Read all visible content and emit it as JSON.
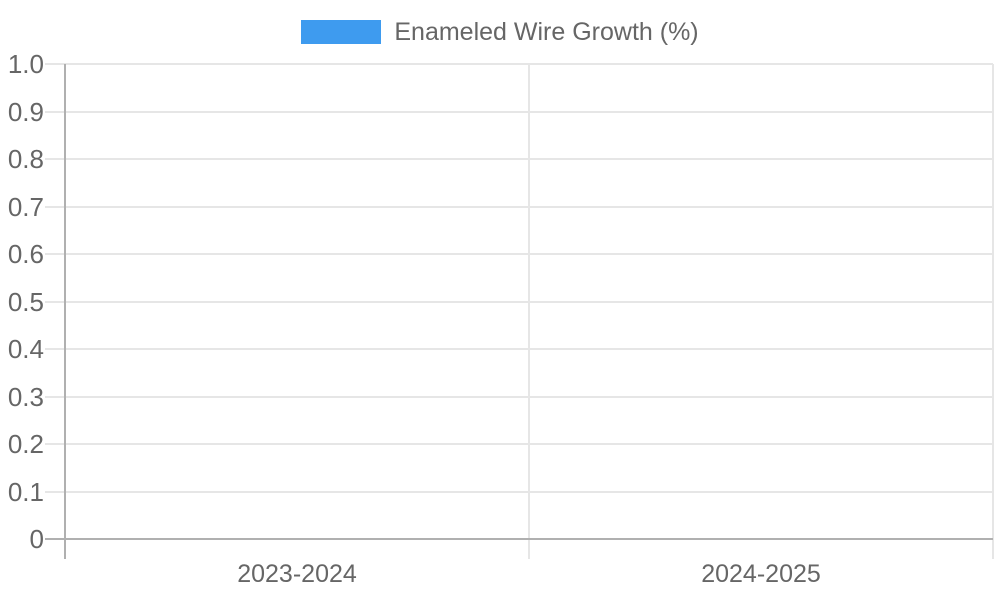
{
  "legend": {
    "label": "Enameled Wire Growth (%)",
    "swatch_color": "#3e9bef"
  },
  "colors": {
    "grid": "#e6e6e6",
    "axis": "#b0b0b0",
    "text": "#666666",
    "series_blue": "#3e9bef",
    "background": "#ffffff"
  },
  "chart_data": {
    "type": "bar",
    "title": "",
    "xlabel": "",
    "ylabel": "",
    "categories": [
      "2023-2024",
      "2024-2025"
    ],
    "series": [
      {
        "name": "Enameled Wire Growth (%)",
        "color": "#3e9bef",
        "values": []
      }
    ],
    "ylim": [
      0,
      1.0
    ],
    "ytick_step": 0.1,
    "ytick_labels": [
      "1.0",
      "0.9",
      "0.8",
      "0.7",
      "0.6",
      "0.5",
      "0.4",
      "0.3",
      "0.2",
      "0.1",
      "0"
    ],
    "grid": true,
    "legend_position": "top-center",
    "plot_is_empty": true
  }
}
